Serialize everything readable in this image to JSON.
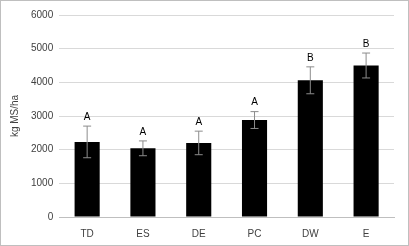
{
  "chart_data": {
    "type": "bar",
    "y_label": "kg MS/ha",
    "categories": [
      "TD",
      "ES",
      "DE",
      "PC",
      "DW",
      "E"
    ],
    "values": [
      2230,
      2040,
      2200,
      2880,
      4060,
      4500
    ],
    "errors": [
      470,
      220,
      350,
      250,
      400,
      370
    ],
    "annotations": [
      "A",
      "A",
      "A",
      "A",
      "B",
      "B"
    ],
    "color": "#000000",
    "ylim": [
      0,
      6000
    ],
    "yticks": [
      0,
      1000,
      2000,
      3000,
      4000,
      5000,
      6000
    ],
    "grid": true
  }
}
